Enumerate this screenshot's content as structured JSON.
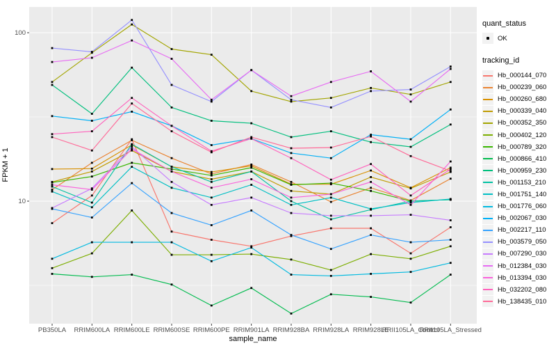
{
  "chart_data": {
    "type": "line",
    "title": "",
    "xlabel": "sample_name",
    "ylabel": "FPKM + 1",
    "y_scale": "log10",
    "y_ticks": [
      100,
      10
    ],
    "y_minor_gridlines": [
      31.62,
      3.162
    ],
    "ylim": [
      2.0,
      140
    ],
    "grid": "on",
    "legend_position": "right",
    "panel_bg": "#EBEBEB",
    "gridline_color": "#FFFFFF",
    "point_color": "#000000",
    "tick_label_color": "#4D4D4D",
    "categories": [
      "PB350LA",
      "RRIM600LA",
      "RRIM600LE",
      "RRIM600SE",
      "RRIM600PE",
      "RRIM901LA",
      "RRIM928BA",
      "RRIM928LA",
      "RRIM928LE",
      "RRII105LA_Control",
      "RRII105LA_Stressed"
    ],
    "series": [
      {
        "name": "Hb_000144_070",
        "color": "#F8766D",
        "values": [
          7.4,
          10.8,
          23.3,
          6.6,
          5.9,
          5.4,
          6.2,
          6.9,
          6.9,
          4.9,
          7.0
        ]
      },
      {
        "name": "Hb_000239_060",
        "color": "#EA8331",
        "values": [
          11.7,
          16.9,
          23,
          18,
          14.5,
          16.5,
          13,
          9.9,
          12,
          10.1,
          13.6
        ]
      },
      {
        "name": "Hb_000260_680",
        "color": "#D89000",
        "values": [
          15.5,
          15.6,
          21.6,
          16,
          14.9,
          16.2,
          12.6,
          12.6,
          15.2,
          12,
          15.8
        ]
      },
      {
        "name": "Hb_000339_040",
        "color": "#C09B00",
        "values": [
          13,
          15,
          20,
          15,
          13.5,
          15,
          11.5,
          11,
          13.9,
          11.9,
          14.9
        ]
      },
      {
        "name": "Hb_000352_350",
        "color": "#A3A500",
        "values": [
          51,
          76,
          112,
          80,
          74,
          45,
          39,
          41,
          47,
          43,
          51
        ]
      },
      {
        "name": "Hb_000402_120",
        "color": "#7CAE00",
        "values": [
          4.0,
          4.9,
          8.8,
          4.8,
          4.8,
          4.85,
          4.5,
          3.9,
          4.85,
          4.55,
          5.4
        ]
      },
      {
        "name": "Hb_000789_320",
        "color": "#39B600",
        "values": [
          12.9,
          14,
          16.9,
          15.5,
          14.2,
          15.8,
          12.5,
          12.8,
          11.5,
          10.0,
          10.2
        ]
      },
      {
        "name": "Hb_000866_410",
        "color": "#00BB4E",
        "values": [
          3.7,
          3.55,
          3.66,
          3.2,
          2.4,
          3.05,
          2.15,
          2.8,
          2.7,
          2.5,
          3.66
        ]
      },
      {
        "name": "Hb_000959_230",
        "color": "#00BF7D",
        "values": [
          49,
          33,
          62,
          36,
          30,
          29,
          24,
          26,
          22.4,
          21,
          28.5
        ]
      },
      {
        "name": "Hb_001153_210",
        "color": "#00C1A3",
        "values": [
          12.2,
          9.8,
          21.8,
          16,
          13,
          15,
          10,
          7.8,
          8.9,
          10,
          10.2
        ]
      },
      {
        "name": "Hb_001751_140",
        "color": "#00BFC4",
        "values": [
          11.4,
          9.2,
          16,
          12,
          10.5,
          12.5,
          9.5,
          10.5,
          9.0,
          9.8,
          10.3
        ]
      },
      {
        "name": "Hb_001776_060",
        "color": "#00BAE0",
        "values": [
          4.55,
          5.7,
          5.7,
          5.7,
          4.4,
          5.3,
          3.66,
          3.6,
          3.7,
          3.8,
          4.3
        ]
      },
      {
        "name": "Hb_002067_030",
        "color": "#00B0F6",
        "values": [
          32,
          30,
          34,
          28,
          21.5,
          23.5,
          19.3,
          18,
          24.8,
          23.3,
          35
        ]
      },
      {
        "name": "Hb_002217_110",
        "color": "#35A2FF",
        "values": [
          9.0,
          8.0,
          12.8,
          8.5,
          7.2,
          8.8,
          6.3,
          5.2,
          6.3,
          5.7,
          5.9
        ]
      },
      {
        "name": "Hb_003579_050",
        "color": "#9590FF",
        "values": [
          81,
          77,
          119,
          49,
          39,
          60,
          40,
          36,
          45,
          46,
          63
        ]
      },
      {
        "name": "Hb_007290_030",
        "color": "#C77CFF",
        "values": [
          9.1,
          11.9,
          21,
          13,
          9.5,
          10.5,
          8.5,
          8.2,
          8.2,
          8.3,
          7.7
        ]
      },
      {
        "name": "Hb_012384_030",
        "color": "#E76BF3",
        "values": [
          67,
          71,
          90,
          70,
          40,
          60,
          42,
          51,
          59,
          39,
          61
        ]
      },
      {
        "name": "Hb_013394_030",
        "color": "#FA62DB",
        "values": [
          12.5,
          11.7,
          20.4,
          15,
          12,
          13.5,
          10.5,
          11,
          13,
          9.5,
          17.2
        ]
      },
      {
        "name": "Hb_032202_080",
        "color": "#FF62BC",
        "values": [
          25,
          26,
          41,
          28,
          19.8,
          23.5,
          18,
          13.4,
          16.6,
          10.8,
          15.5
        ]
      },
      {
        "name": "Hb_138435_010",
        "color": "#FF6A98",
        "values": [
          24,
          20,
          38,
          26,
          19.5,
          24,
          20.6,
          20.8,
          24.2,
          18.5,
          15.1
        ]
      }
    ]
  },
  "legend": {
    "quant_title": "quant_status",
    "quant_items": [
      {
        "label": "OK",
        "marker": "black-point"
      }
    ],
    "tracking_title": "tracking_id",
    "key_bg": "#F2F2F2"
  }
}
